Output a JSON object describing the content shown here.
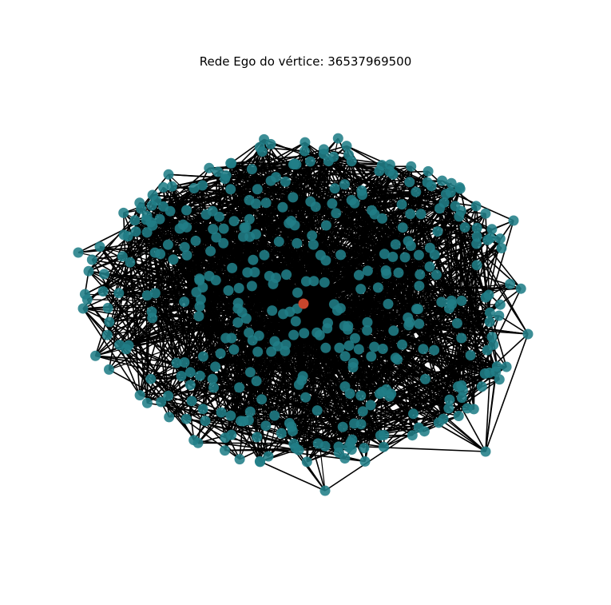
{
  "title": "Rede Ego do vértice: 36537969500",
  "graph": {
    "ego_vertex": "36537969500",
    "node_color": "#217e87",
    "ego_color": "#c8452c",
    "edge_color": "#000000"
  }
}
